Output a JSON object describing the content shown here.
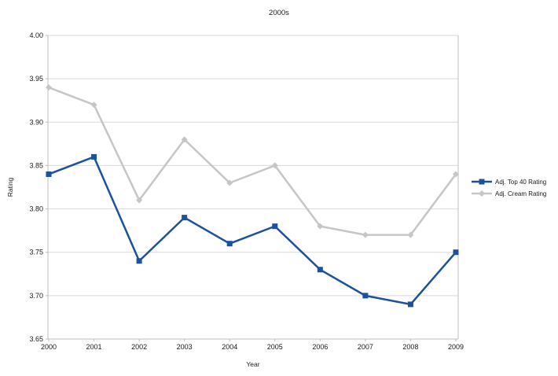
{
  "chart_data": {
    "type": "line",
    "title": "2000s",
    "xlabel": "Year",
    "ylabel": "Rating",
    "categories": [
      "2000",
      "2001",
      "2002",
      "2003",
      "2004",
      "2005",
      "2006",
      "2007",
      "2008",
      "2009"
    ],
    "series": [
      {
        "name": "Adj. Top 40 Rating",
        "color": "#1B529B",
        "marker": "square",
        "values": [
          3.84,
          3.86,
          3.74,
          3.79,
          3.76,
          3.78,
          3.73,
          3.7,
          3.69,
          3.75
        ]
      },
      {
        "name": "Adj. Cream Rating",
        "color": "#C6C6C6",
        "marker": "diamond",
        "values": [
          3.94,
          3.92,
          3.81,
          3.88,
          3.83,
          3.85,
          3.78,
          3.77,
          3.77,
          3.84
        ]
      }
    ],
    "ylim": [
      3.65,
      4.0
    ],
    "y_ticks": [
      "4.00",
      "3.95",
      "3.90",
      "3.85",
      "3.80",
      "3.75",
      "3.70",
      "3.65"
    ],
    "grid": true,
    "legend_position": "right",
    "colors": {
      "gridline": "#D9D9D9",
      "axis": "#BFBFBF",
      "background": "#FFFFFF",
      "text": "#1A1A1A"
    }
  }
}
